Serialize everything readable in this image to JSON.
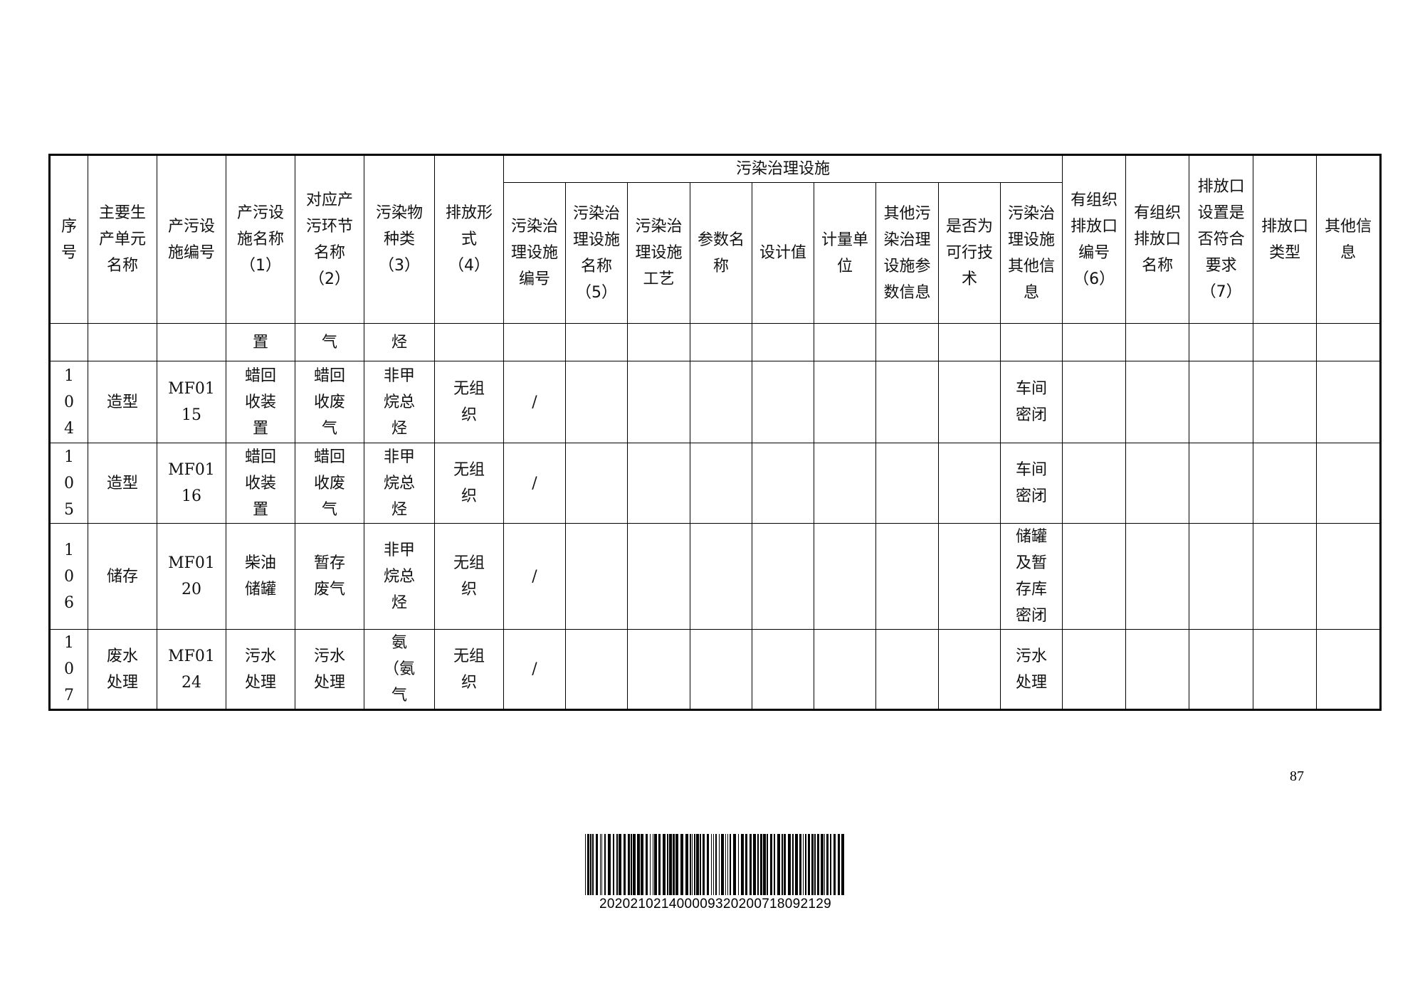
{
  "table": {
    "group_header": "污染治理设施",
    "headers": [
      "序号",
      "主要生产单元名称",
      "产污设施编号",
      "产污设施名称（1）",
      "对应产污环节名称（2）",
      "污染物种类（3）",
      "排放形式（4）",
      "污染治理设施编号",
      "污染治理设施名称（5）",
      "污染治理设施工艺",
      "参数名称",
      "设计值",
      "计量单位",
      "其他污染治理设施参数信息",
      "是否为可行技术",
      "污染治理设施其他信息",
      "有组织排放口编号（6）",
      "有组织排放口名称",
      "排放口设置是否符合要求（7）",
      "排放口类型",
      "其他信息"
    ],
    "continuation_row": [
      "",
      "",
      "",
      "置",
      "气",
      "烃",
      "",
      "",
      "",
      "",
      "",
      "",
      "",
      "",
      "",
      "",
      "",
      "",
      "",
      "",
      ""
    ],
    "rows": [
      [
        "104",
        "造型",
        "MF0115",
        "蜡回收装置",
        "蜡回收废气",
        "非甲烷总烃",
        "无组织",
        "/",
        "",
        "",
        "",
        "",
        "",
        "",
        "",
        "车间密闭",
        "",
        "",
        "",
        "",
        ""
      ],
      [
        "105",
        "造型",
        "MF0116",
        "蜡回收装置",
        "蜡回收废气",
        "非甲烷总烃",
        "无组织",
        "/",
        "",
        "",
        "",
        "",
        "",
        "",
        "",
        "车间密闭",
        "",
        "",
        "",
        "",
        ""
      ],
      [
        "106",
        "储存",
        "MF0120",
        "柴油储罐",
        "暂存废气",
        "非甲烷总烃",
        "无组织",
        "/",
        "",
        "",
        "",
        "",
        "",
        "",
        "",
        "储罐及暂存库密闭",
        "",
        "",
        "",
        "",
        ""
      ],
      [
        "107",
        "废水处理",
        "MF0124",
        "污水处理",
        "污水处理",
        "氨（氨气",
        "无组织",
        "/",
        "",
        "",
        "",
        "",
        "",
        "",
        "",
        "污水处理",
        "",
        "",
        "",
        "",
        ""
      ]
    ]
  },
  "page_number": "87",
  "barcode_text": "20202102140000932020071809212 9"
}
